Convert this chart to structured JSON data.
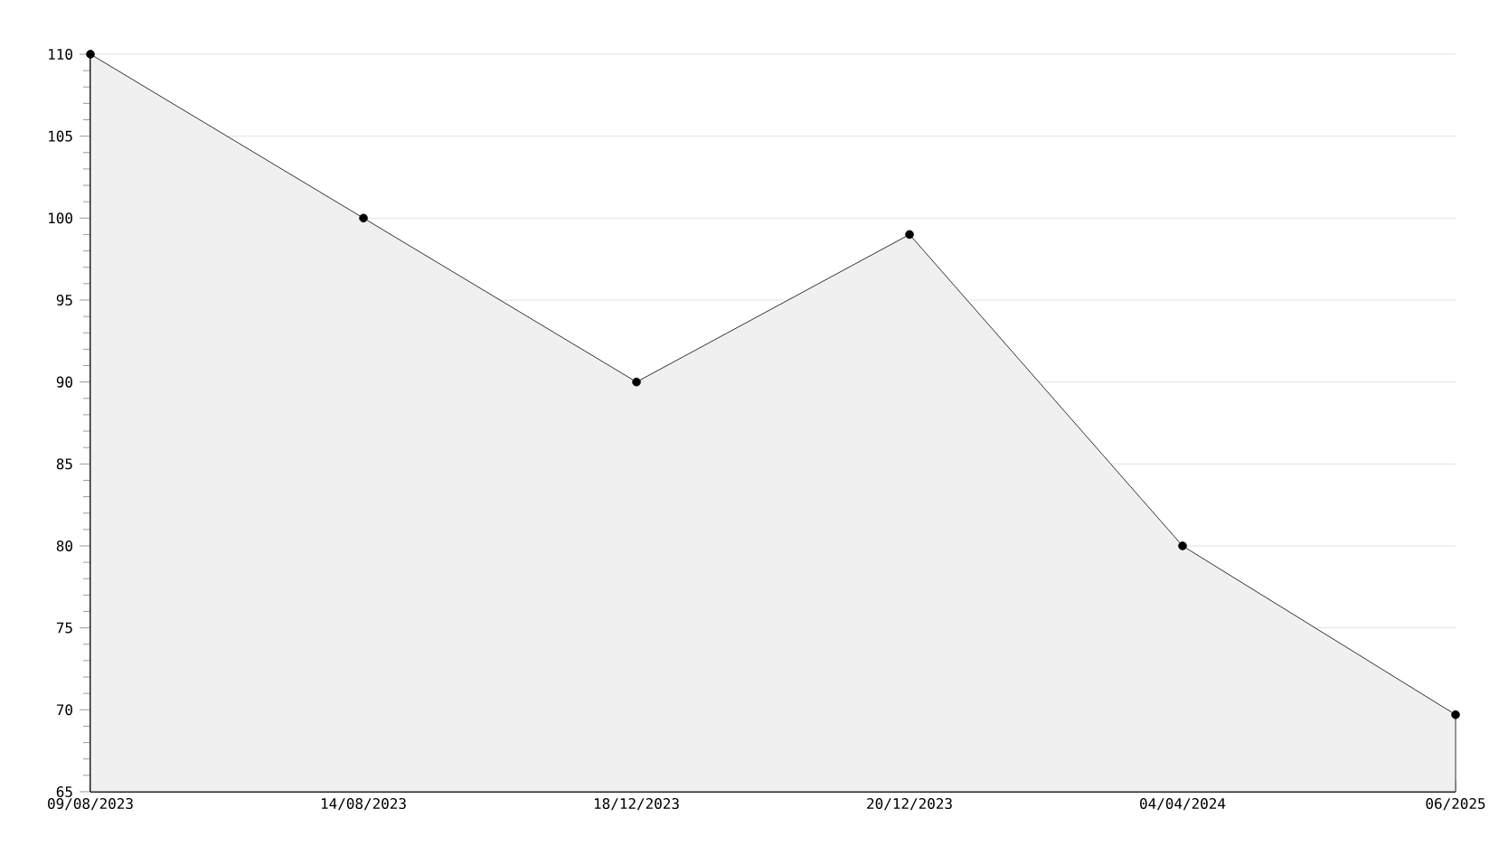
{
  "chart_data": {
    "type": "area",
    "categories": [
      "09/08/2023",
      "14/08/2023",
      "18/12/2023",
      "20/12/2023",
      "04/04/2024",
      "06/2025"
    ],
    "values": [
      110,
      100,
      90,
      99,
      80,
      69.7
    ],
    "color": "#000000",
    "ylim": [
      65,
      110
    ],
    "yticks": [
      65,
      70,
      75,
      80,
      85,
      90,
      95,
      100,
      105,
      110
    ],
    "grid": "y",
    "marker": "circle"
  }
}
